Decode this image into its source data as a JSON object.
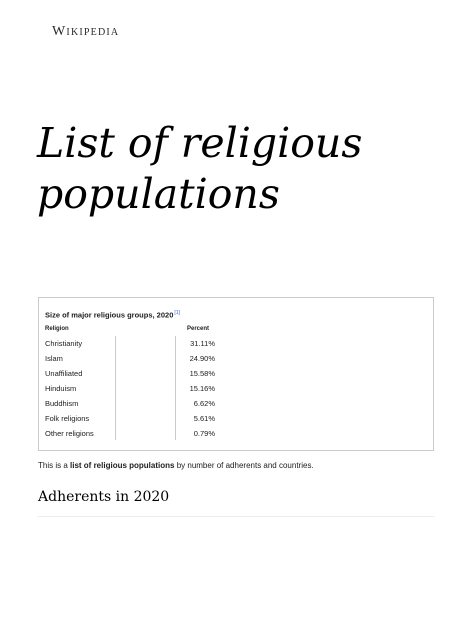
{
  "header": {
    "wordmark": "Wikipedia"
  },
  "page": {
    "title_line1": "List of religious",
    "title_line2": "populations"
  },
  "infobox": {
    "caption": "Size of major religious groups, 2020",
    "cite": "[1]",
    "col_religion": "Religion",
    "col_percent": "Percent",
    "rows": [
      {
        "name": "Christianity",
        "percent": "31.11%"
      },
      {
        "name": "Islam",
        "percent": "24.90%"
      },
      {
        "name": "Unaffiliated",
        "percent": "15.58%"
      },
      {
        "name": "Hinduism",
        "percent": "15.16%"
      },
      {
        "name": "Buddhism",
        "percent": "6.62%"
      },
      {
        "name": "Folk religions",
        "percent": "5.61%"
      },
      {
        "name": "Other religions",
        "percent": "0.79%"
      }
    ]
  },
  "intro": {
    "prefix": "This is a ",
    "bold": "list of religious populations",
    "suffix": " by number of adherents and countries."
  },
  "section": {
    "heading": "Adherents in 2020"
  }
}
